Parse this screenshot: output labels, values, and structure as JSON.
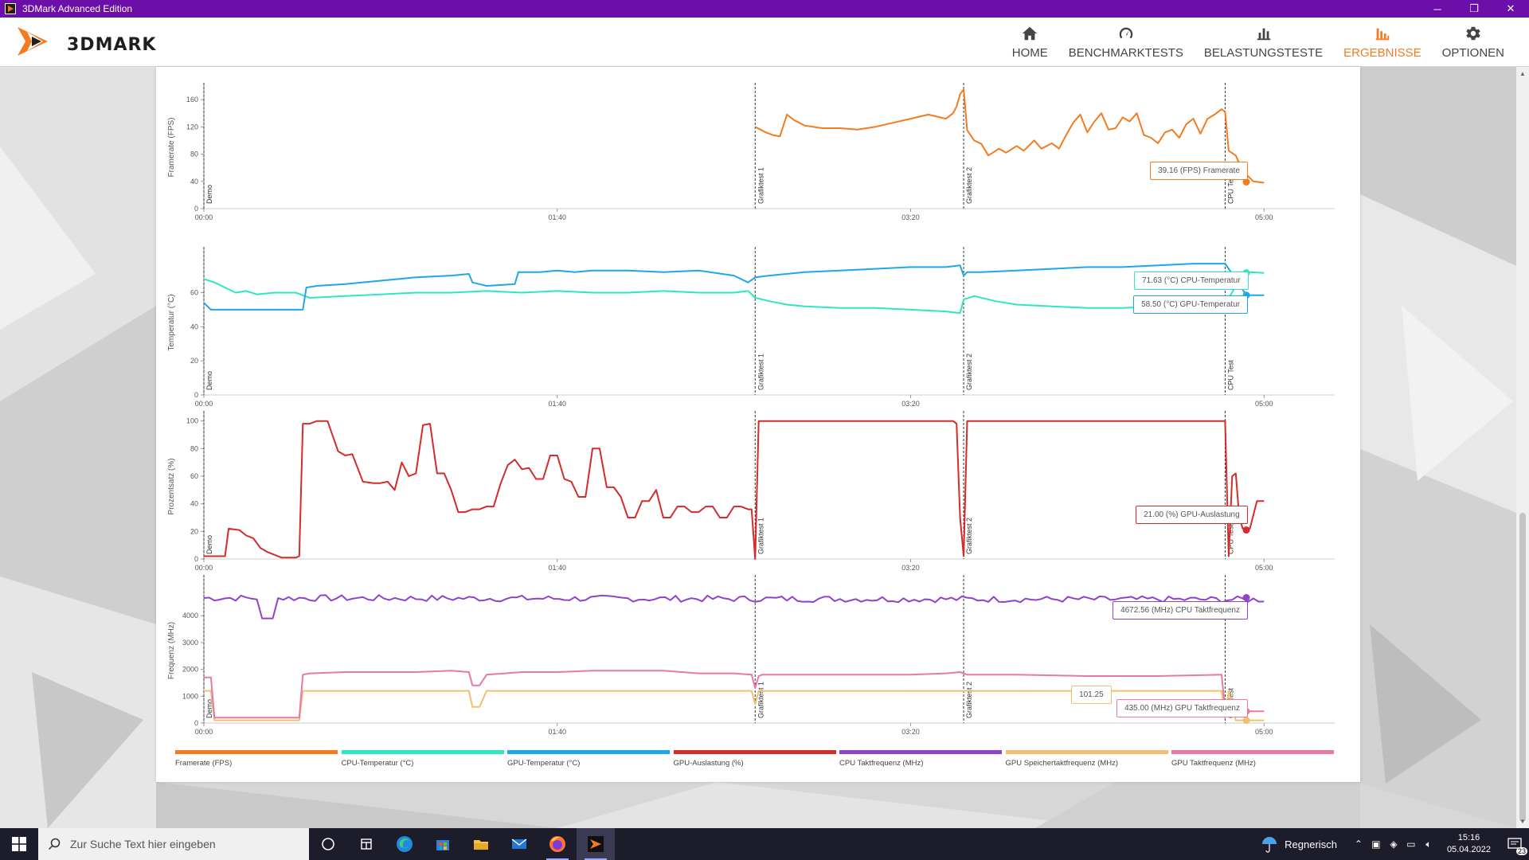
{
  "window": {
    "title": "3DMark Advanced Edition",
    "min": "─",
    "max": "❐",
    "close": "✕"
  },
  "header": {
    "logo_text": "3DMARK",
    "nav": [
      {
        "id": "home",
        "label": "HOME",
        "icon": "home-icon",
        "active": false
      },
      {
        "id": "benchmark",
        "label": "BENCHMARKTESTS",
        "icon": "speedometer-icon",
        "active": false
      },
      {
        "id": "stress",
        "label": "BELASTUNGSTESTE",
        "icon": "bar-chart-icon",
        "active": false
      },
      {
        "id": "results",
        "label": "ERGEBNISSE",
        "icon": "results-icon",
        "active": true
      },
      {
        "id": "options",
        "label": "OPTIONEN",
        "icon": "gear-icon",
        "active": false
      }
    ]
  },
  "colors": {
    "framerate": "#f47b20",
    "cpu_temp": "#2ee6c0",
    "gpu_temp": "#1ea8e8",
    "gpu_load": "#d42b2b",
    "cpu_clock": "#8e44c8",
    "gpu_mem_clock": "#f0c070",
    "gpu_clock": "#e878a8",
    "accent": "#f47b20",
    "titlebar": "#6b0fa8"
  },
  "chart_data": {
    "type": "line",
    "x_range": [
      "00:00",
      "05:20"
    ],
    "x_ticks": [
      "00:00",
      "01:40",
      "03:20",
      "05:00"
    ],
    "markers": [
      {
        "label": "Demo",
        "t": 0
      },
      {
        "label": "Grafiktest 1",
        "t": 156
      },
      {
        "label": "Grafiktest 2",
        "t": 215
      },
      {
        "label": "CPU Test",
        "t": 289
      }
    ],
    "panels": [
      {
        "ylabel": "Framerate (FPS)",
        "ylim": [
          0,
          180
        ],
        "yticks": [
          0,
          40,
          80,
          120,
          160
        ],
        "series": [
          {
            "name": "Framerate (FPS)",
            "color_key": "framerate",
            "t": [
              156,
              159,
              161,
              163,
              165,
              167,
              170,
              175,
              180,
              185,
              190,
              195,
              200,
              205,
              210,
              212,
              213,
              214,
              215,
              216,
              218,
              220,
              222,
              225,
              227,
              230,
              232,
              235,
              237,
              240,
              242,
              244,
              246,
              248,
              250,
              252,
              254,
              256,
              258,
              260,
              262,
              264,
              266,
              268,
              270,
              272,
              274,
              276,
              278,
              280,
              282,
              284,
              286,
              288,
              289,
              290,
              292,
              294,
              297,
              300
            ],
            "y": [
              120,
              112,
              108,
              106,
              138,
              130,
              122,
              118,
              118,
              116,
              120,
              126,
              132,
              138,
              132,
              140,
              150,
              168,
              175,
              115,
              100,
              95,
              78,
              88,
              82,
              92,
              85,
              100,
              88,
              96,
              88,
              108,
              126,
              138,
              112,
              128,
              140,
              116,
              118,
              134,
              128,
              140,
              108,
              104,
              96,
              112,
              116,
              104,
              124,
              132,
              110,
              132,
              138,
              146,
              142,
              85,
              78,
              55,
              40,
              38
            ]
          }
        ],
        "tooltips": [
          {
            "text": "39.16 (FPS) Framerate",
            "value": 39.16,
            "color_key": "framerate"
          }
        ]
      },
      {
        "ylabel": "Temperatur (°C)",
        "ylim": [
          0,
          85
        ],
        "yticks": [
          0,
          20,
          40,
          60
        ],
        "series": [
          {
            "name": "CPU-Temperatur (°C)",
            "color_key": "cpu_temp",
            "t": [
              0,
              3,
              6,
              9,
              12,
              15,
              20,
              26,
              30,
              40,
              50,
              60,
              70,
              80,
              90,
              100,
              110,
              120,
              130,
              140,
              150,
              154,
              156,
              160,
              165,
              170,
              180,
              190,
              200,
              210,
              214,
              215,
              218,
              224,
              230,
              240,
              250,
              260,
              270,
              280,
              288,
              289,
              292,
              296,
              300
            ],
            "y": [
              68,
              66,
              63,
              60,
              61,
              59,
              60,
              60,
              57,
              58,
              59,
              60,
              60,
              61,
              60,
              61,
              60,
              60,
              61,
              60,
              60,
              61,
              57,
              55,
              53,
              52,
              51,
              51,
              50,
              49,
              48,
              56,
              58,
              55,
              53,
              52,
              51,
              51,
              52,
              55,
              56,
              53,
              64,
              72,
              71.6
            ]
          },
          {
            "name": "GPU-Temperatur (°C)",
            "color_key": "gpu_temp",
            "t": [
              0,
              2,
              4,
              8,
              12,
              20,
              28,
              29,
              32,
              40,
              50,
              60,
              70,
              75,
              76,
              80,
              88,
              89,
              95,
              100,
              105,
              110,
              120,
              130,
              140,
              150,
              154,
              156,
              160,
              170,
              180,
              190,
              200,
              210,
              214,
              215,
              216,
              220,
              230,
              240,
              250,
              260,
              270,
              280,
              289,
              290,
              295,
              300
            ],
            "y": [
              54,
              50,
              50,
              50,
              50,
              50,
              50,
              63,
              64,
              65,
              67,
              69,
              70,
              71,
              66,
              64,
              65,
              72,
              72,
              73,
              72,
              73,
              73,
              72,
              73,
              70,
              66,
              69,
              70,
              72,
              73,
              74,
              75,
              75,
              76,
              70,
              72,
              72,
              73,
              74,
              75,
              75,
              76,
              77,
              77,
              74,
              58.5,
              58.5
            ]
          }
        ],
        "tooltips": [
          {
            "text": "71.63 (°C) CPU-Temperatur",
            "value": 71.63,
            "color_key": "cpu_temp"
          },
          {
            "text": "58.50 (°C) GPU-Temperatur",
            "value": 58.5,
            "color_key": "gpu_temp"
          }
        ]
      },
      {
        "ylabel": "Prozentsatz (%)",
        "ylim": [
          0,
          105
        ],
        "yticks": [
          0,
          20,
          40,
          60,
          80,
          100
        ],
        "series": [
          {
            "name": "GPU-Auslastung (%)",
            "color_key": "gpu_load",
            "t": [
              0,
              6,
              7,
              10,
              12,
              14,
              16,
              18,
              20,
              22,
              24,
              26,
              27,
              28,
              30,
              32,
              35,
              38,
              40,
              42,
              45,
              48,
              50,
              52,
              54,
              56,
              58,
              60,
              62,
              64,
              66,
              68,
              70,
              72,
              74,
              76,
              78,
              80,
              82,
              84,
              86,
              88,
              90,
              92,
              94,
              96,
              98,
              100,
              102,
              104,
              106,
              108,
              110,
              112,
              114,
              116,
              118,
              120,
              122,
              124,
              126,
              128,
              130,
              132,
              134,
              136,
              138,
              140,
              142,
              144,
              146,
              148,
              150,
              152,
              154,
              155,
              156,
              157,
              212,
              213,
              214,
              215,
              216,
              234,
              288,
              289,
              290,
              291,
              292,
              293,
              294,
              296,
              298,
              300
            ],
            "y": [
              2,
              2,
              22,
              21,
              17,
              15,
              8,
              5,
              3,
              1,
              1,
              1,
              2,
              98,
              98,
              100,
              100,
              78,
              75,
              76,
              56,
              55,
              55,
              56,
              50,
              70,
              60,
              62,
              97,
              98,
              62,
              62,
              50,
              34,
              34,
              36,
              36,
              38,
              38,
              55,
              68,
              72,
              65,
              66,
              58,
              58,
              75,
              75,
              58,
              56,
              45,
              45,
              80,
              80,
              52,
              52,
              45,
              30,
              30,
              42,
              42,
              50,
              30,
              30,
              38,
              38,
              34,
              34,
              38,
              38,
              30,
              30,
              38,
              38,
              36,
              36,
              0,
              100,
              100,
              98,
              30,
              2,
              100,
              100,
              100,
              100,
              2,
              60,
              62,
              30,
              22,
              22,
              42,
              42
            ]
          }
        ],
        "tooltips": [
          {
            "text": "21.00 (%) GPU-Auslastung",
            "value": 21,
            "color_key": "gpu_load"
          }
        ]
      },
      {
        "ylabel": "Frequenz (MHz)",
        "ylim": [
          0,
          5400
        ],
        "yticks": [
          0,
          1000,
          2000,
          3000,
          4000
        ],
        "series": [
          {
            "name": "CPU Taktfrequenz (MHz)",
            "color_key": "cpu_clock",
            "base": 4700,
            "jitter": 120,
            "dips": [
              [
                18,
                3900
              ]
            ],
            "t": [
              0,
              300
            ],
            "y": [
              4700,
              4600
            ]
          },
          {
            "name": "GPU Speichertaktfrequenz (MHz)",
            "color_key": "gpu_mem_clock",
            "t": [
              0,
              2,
              3,
              27,
              28,
              30,
              75,
              76,
              78,
              80,
              82,
              155,
              156,
              157,
              158,
              288,
              289,
              290,
              292,
              296,
              300
            ],
            "y": [
              1200,
              1200,
              100,
              100,
              1200,
              1200,
              1200,
              600,
              600,
              1200,
              1200,
              1200,
              700,
              1200,
              1200,
              1200,
              200,
              1200,
              101.25,
              101.25,
              101.25
            ]
          },
          {
            "name": "GPU Taktfrequenz (MHz)",
            "color_key": "gpu_clock",
            "t": [
              0,
              2,
              3,
              27,
              28,
              30,
              40,
              50,
              60,
              70,
              75,
              76,
              78,
              80,
              90,
              100,
              110,
              120,
              130,
              140,
              150,
              155,
              156,
              157,
              158,
              170,
              180,
              200,
              210,
              214,
              216,
              230,
              250,
              270,
              288,
              289,
              290,
              292,
              296,
              300
            ],
            "y": [
              1700,
              1700,
              200,
              200,
              1800,
              1850,
              1900,
              1900,
              1900,
              1950,
              1900,
              1400,
              1400,
              1800,
              1900,
              1900,
              1950,
              1950,
              1950,
              1850,
              1850,
              1800,
              1300,
              1750,
              1800,
              1800,
              1800,
              1800,
              1850,
              1900,
              1800,
              1800,
              1750,
              1750,
              1800,
              500,
              800,
              435,
              435,
              435
            ]
          }
        ],
        "tooltips": [
          {
            "text": "4672.56 (MHz) CPU Taktfrequenz",
            "value": 4672.56,
            "color_key": "cpu_clock"
          },
          {
            "text": "101.25",
            "value": 101.25,
            "color_key": "gpu_mem_clock"
          },
          {
            "text": "435.00 (MHz) GPU Taktfrequenz",
            "value": 435,
            "color_key": "gpu_clock"
          }
        ]
      }
    ],
    "legend": [
      {
        "label": "Framerate (FPS)",
        "color_key": "framerate"
      },
      {
        "label": "CPU-Temperatur (°C)",
        "color_key": "cpu_temp"
      },
      {
        "label": "GPU-Temperatur (°C)",
        "color_key": "gpu_temp"
      },
      {
        "label": "GPU-Auslastung (%)",
        "color_key": "gpu_load"
      },
      {
        "label": "CPU Taktfrequenz (MHz)",
        "color_key": "cpu_clock"
      },
      {
        "label": "GPU Speichertaktfrequenz (MHz)",
        "color_key": "gpu_mem_clock"
      },
      {
        "label": "GPU Taktfrequenz (MHz)",
        "color_key": "gpu_clock"
      }
    ]
  },
  "taskbar": {
    "search_placeholder": "Zur Suche Text hier eingeben",
    "apps": [
      {
        "name": "task-view-icon"
      },
      {
        "name": "widgets-icon"
      },
      {
        "name": "edge-icon"
      },
      {
        "name": "store-icon"
      },
      {
        "name": "explorer-icon"
      },
      {
        "name": "mail-icon"
      },
      {
        "name": "firefox-icon"
      },
      {
        "name": "3dmark-icon"
      }
    ],
    "weather": "Regnerisch",
    "time": "15:16",
    "date": "05.04.2022",
    "notification_count": "23"
  }
}
